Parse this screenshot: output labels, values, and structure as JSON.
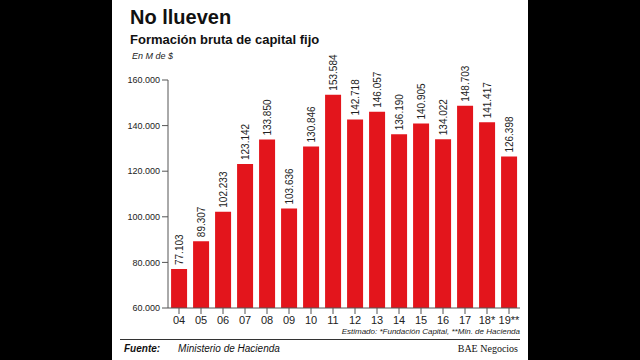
{
  "chart_data": {
    "type": "bar",
    "title": "No llueven",
    "subtitle": "Formación bruta de capital fijo",
    "y_label": "En M de $",
    "categories": [
      "04",
      "05",
      "06",
      "07",
      "08",
      "09",
      "10",
      "11",
      "12",
      "13",
      "14",
      "15",
      "16",
      "17",
      "18*",
      "19**"
    ],
    "values": [
      77103,
      89307,
      102233,
      123142,
      133850,
      103636,
      130846,
      153584,
      142718,
      146057,
      136190,
      140905,
      134022,
      148703,
      141417,
      126398
    ],
    "value_labels": [
      "77.103",
      "89.307",
      "102.233",
      "123.142",
      "133.850",
      "103.636",
      "130.846",
      "153.584",
      "142.718",
      "146.057",
      "136.190",
      "140.905",
      "134.022",
      "148.703",
      "141.417",
      "126.398"
    ],
    "color": "#e3151c",
    "ylim": [
      60000,
      160000
    ],
    "yticks": [
      {
        "value": 60000,
        "label": "60.000"
      },
      {
        "value": 80000,
        "label": "80.000"
      },
      {
        "value": 100000,
        "label": "100.000"
      },
      {
        "value": 120000,
        "label": "120.000"
      },
      {
        "value": 140000,
        "label": "140.000"
      },
      {
        "value": 160000,
        "label": "160.000"
      }
    ],
    "grid": false,
    "data_labels": true,
    "footnote": "Estimado: *Fundación Capital, **Min. de Hacienda",
    "source_label": "Fuente:",
    "source": "Ministerio de Hacienda",
    "credit": "BAE Negocios"
  }
}
